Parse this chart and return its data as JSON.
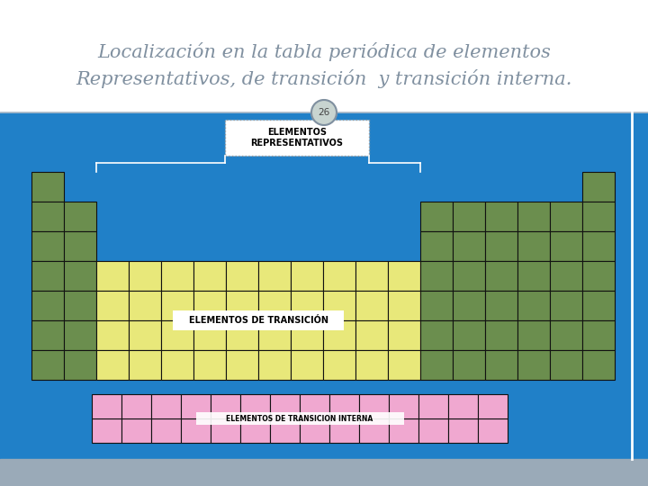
{
  "title_line1": "Localización en la tabla periódica de elementos",
  "title_line2": "Representativos, de transición  y transición interna.",
  "slide_number": "26",
  "bg_white": "#ffffff",
  "bg_blue": "#2080c8",
  "bg_footer": "#9aaab8",
  "title_color": "#8090a0",
  "title_fontsize": 15,
  "green_color": "#6b8e4e",
  "yellow_color": "#e8e87a",
  "pink_color": "#f0a8d0",
  "cell_edge_color": "#111111",
  "cell_lw": 0.8,
  "bracket_color": "#ffffff",
  "label_rep": "ELEMENTOS\nREPRESENTATIVOS",
  "label_trans": "ELEMENTOS DE TRANSICIÓN",
  "label_intern": "ELEMENTOS DE TRANSICION INTERNA",
  "rep_box_border": "#999999",
  "white": "#ffffff",
  "slide_circle_fill": "#c8d4d0",
  "slide_circle_border": "#8090a0",
  "slide_num_color": "#444444"
}
